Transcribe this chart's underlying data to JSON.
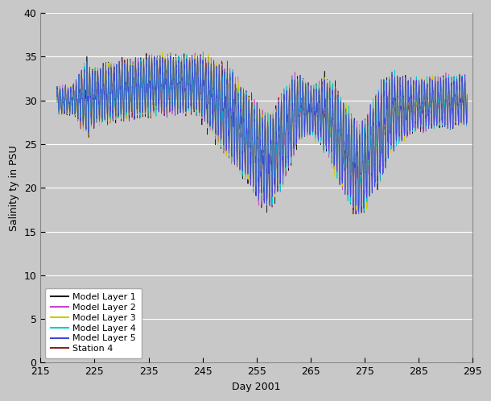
{
  "xlabel": "Day 2001",
  "ylabel": "Salinity ty in PSU",
  "xlim": [
    215,
    295
  ],
  "ylim": [
    0,
    40
  ],
  "xticks": [
    215,
    225,
    235,
    245,
    255,
    265,
    275,
    285,
    295
  ],
  "yticks": [
    0,
    5,
    10,
    15,
    20,
    25,
    30,
    35,
    40
  ],
  "background_color": "#c8c8c8",
  "axes_bg_color": "#c8c8c8",
  "legend_entries": [
    "Model Layer 1",
    "Model Layer 2",
    "Model Layer 3",
    "Model Layer 4",
    "Model Layer 5",
    "Station 4"
  ],
  "legend_colors": [
    "#1a1a1a",
    "#cc44cc",
    "#cccc00",
    "#00cccc",
    "#4444dd",
    "#8b2020"
  ],
  "line_widths": [
    0.5,
    0.5,
    0.5,
    0.5,
    0.5,
    0.6
  ],
  "seed": 42,
  "n_points": 3000,
  "x_start": 218.0,
  "x_end": 294.0
}
